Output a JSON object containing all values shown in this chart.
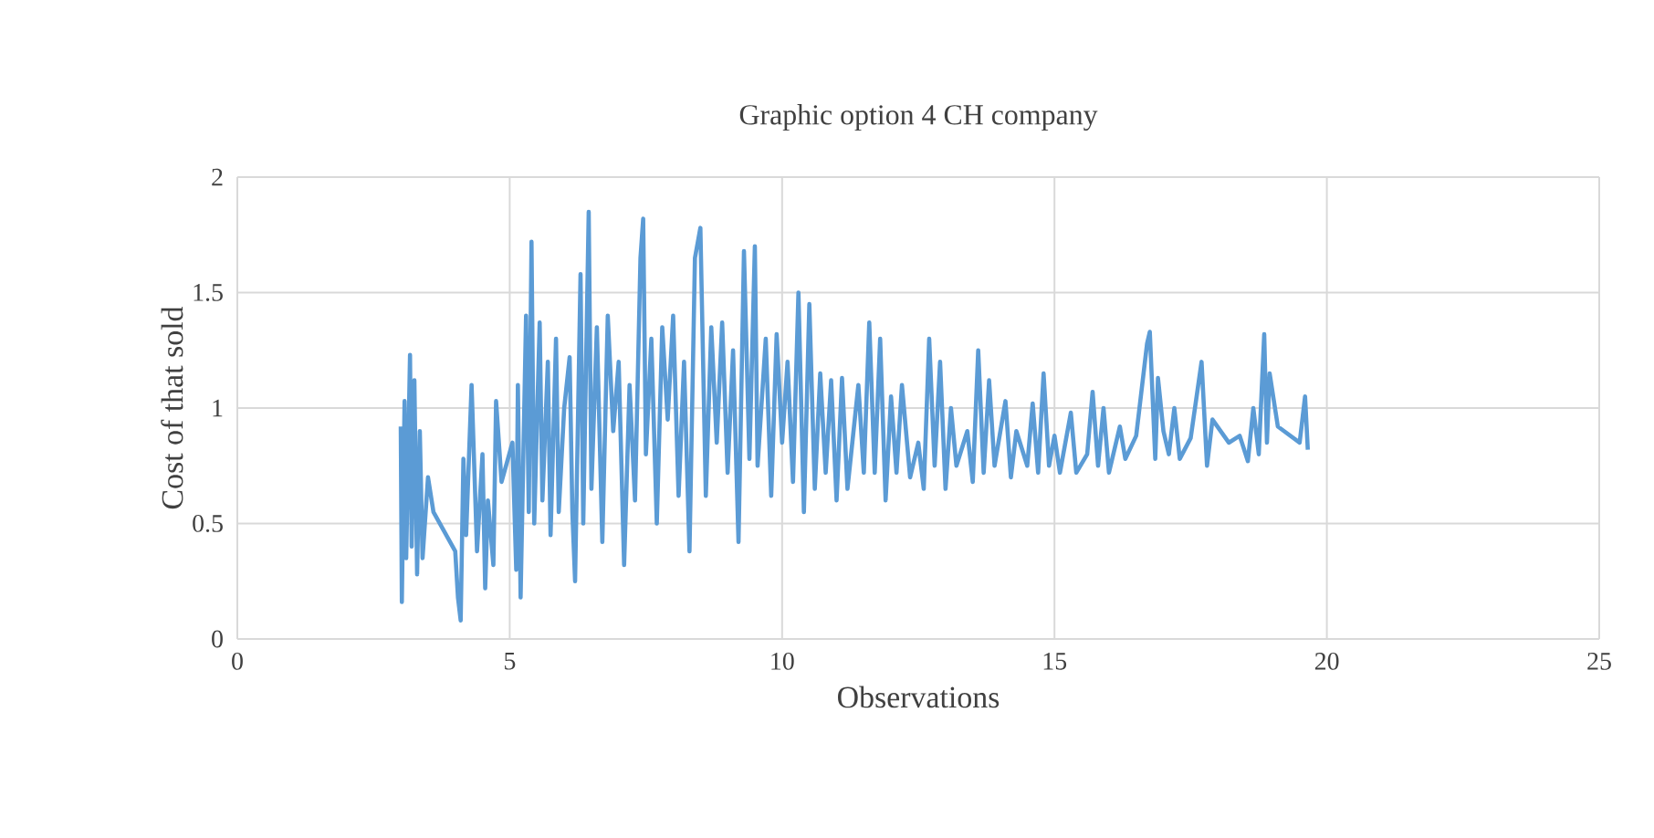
{
  "chart_data": {
    "type": "line",
    "title": "Graphic option 4 CH company",
    "xlabel": "Observations",
    "ylabel": "Cost of that sold",
    "xlim": [
      0,
      25
    ],
    "xticks": [
      0,
      5,
      10,
      15,
      20,
      25
    ],
    "ylim": [
      0,
      2
    ],
    "yticks": [
      0,
      0.5,
      1,
      1.5,
      2
    ],
    "grid": true,
    "marker": "none",
    "line_style": "solid",
    "series": [
      {
        "color": "#5b9bd5",
        "x": [
          3.0,
          3.02,
          3.07,
          3.1,
          3.17,
          3.2,
          3.25,
          3.3,
          3.35,
          3.4,
          3.5,
          3.6,
          4.0,
          4.05,
          4.1,
          4.15,
          4.2,
          4.3,
          4.4,
          4.5,
          4.55,
          4.6,
          4.7,
          4.75,
          4.85,
          5.05,
          5.12,
          5.15,
          5.2,
          5.3,
          5.35,
          5.4,
          5.45,
          5.55,
          5.6,
          5.7,
          5.75,
          5.85,
          5.9,
          6.0,
          6.1,
          6.15,
          6.2,
          6.3,
          6.35,
          6.45,
          6.5,
          6.6,
          6.7,
          6.8,
          6.9,
          7.0,
          7.1,
          7.2,
          7.3,
          7.4,
          7.45,
          7.5,
          7.6,
          7.7,
          7.8,
          7.9,
          8.0,
          8.1,
          8.2,
          8.3,
          8.4,
          8.5,
          8.6,
          8.7,
          8.8,
          8.9,
          9.0,
          9.1,
          9.2,
          9.3,
          9.4,
          9.5,
          9.55,
          9.7,
          9.8,
          9.9,
          10.0,
          10.1,
          10.2,
          10.3,
          10.4,
          10.5,
          10.6,
          10.7,
          10.8,
          10.9,
          11.0,
          11.1,
          11.2,
          11.4,
          11.5,
          11.6,
          11.7,
          11.8,
          11.9,
          12.0,
          12.1,
          12.2,
          12.35,
          12.5,
          12.6,
          12.7,
          12.8,
          12.9,
          13.0,
          13.1,
          13.2,
          13.4,
          13.5,
          13.6,
          13.7,
          13.8,
          13.9,
          14.1,
          14.2,
          14.3,
          14.5,
          14.6,
          14.7,
          14.8,
          14.9,
          15.0,
          15.1,
          15.3,
          15.4,
          15.6,
          15.7,
          15.8,
          15.9,
          16.0,
          16.2,
          16.3,
          16.5,
          16.7,
          16.75,
          16.85,
          16.9,
          17.0,
          17.1,
          17.2,
          17.3,
          17.5,
          17.7,
          17.8,
          17.9,
          18.2,
          18.4,
          18.55,
          18.65,
          18.75,
          18.85,
          18.9,
          18.95,
          19.1,
          19.5,
          19.6,
          19.65
        ],
        "values": [
          0.92,
          0.16,
          1.03,
          0.35,
          1.23,
          0.4,
          1.12,
          0.28,
          0.9,
          0.35,
          0.7,
          0.55,
          0.38,
          0.18,
          0.08,
          0.78,
          0.45,
          1.1,
          0.38,
          0.8,
          0.22,
          0.6,
          0.32,
          1.03,
          0.68,
          0.85,
          0.3,
          1.1,
          0.18,
          1.4,
          0.55,
          1.72,
          0.5,
          1.37,
          0.6,
          1.2,
          0.45,
          1.3,
          0.55,
          1.0,
          1.22,
          0.55,
          0.25,
          1.58,
          0.5,
          1.85,
          0.65,
          1.35,
          0.42,
          1.4,
          0.9,
          1.2,
          0.32,
          1.1,
          0.6,
          1.65,
          1.82,
          0.8,
          1.3,
          0.5,
          1.35,
          0.95,
          1.4,
          0.62,
          1.2,
          0.38,
          1.65,
          1.78,
          0.62,
          1.35,
          0.85,
          1.37,
          0.72,
          1.25,
          0.42,
          1.68,
          0.78,
          1.7,
          0.75,
          1.3,
          0.62,
          1.32,
          0.85,
          1.2,
          0.68,
          1.5,
          0.55,
          1.45,
          0.65,
          1.15,
          0.72,
          1.12,
          0.6,
          1.13,
          0.65,
          1.1,
          0.72,
          1.37,
          0.72,
          1.3,
          0.6,
          1.05,
          0.72,
          1.1,
          0.7,
          0.85,
          0.65,
          1.3,
          0.75,
          1.2,
          0.65,
          1.0,
          0.75,
          0.9,
          0.68,
          1.25,
          0.72,
          1.12,
          0.75,
          1.03,
          0.7,
          0.9,
          0.75,
          1.02,
          0.72,
          1.15,
          0.75,
          0.88,
          0.72,
          0.98,
          0.72,
          0.8,
          1.07,
          0.75,
          1.0,
          0.72,
          0.92,
          0.78,
          0.88,
          1.28,
          1.33,
          0.78,
          1.13,
          0.9,
          0.8,
          1.0,
          0.78,
          0.87,
          1.2,
          0.75,
          0.95,
          0.85,
          0.88,
          0.77,
          1.0,
          0.8,
          1.32,
          0.85,
          1.15,
          0.92,
          0.85,
          1.05,
          0.82
        ]
      }
    ]
  }
}
